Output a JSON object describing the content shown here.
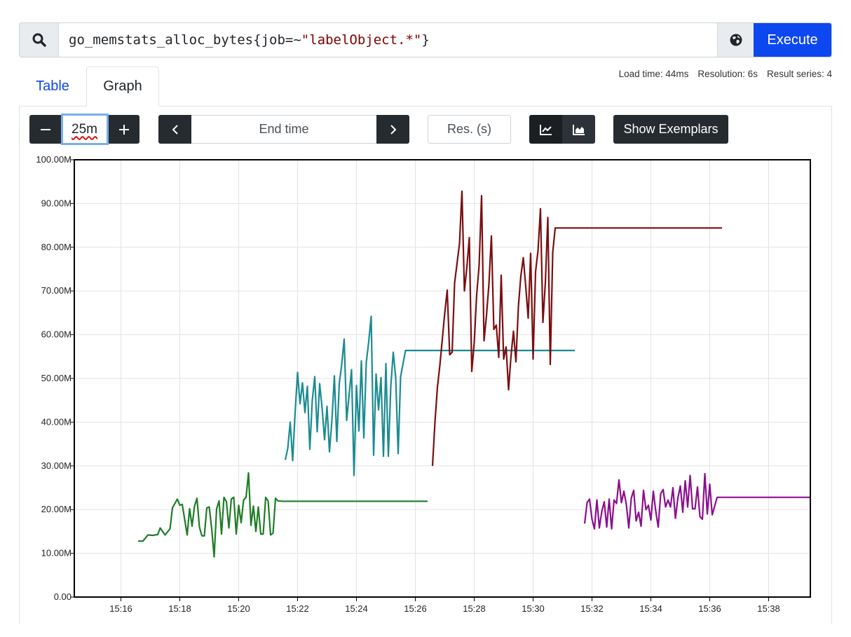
{
  "query": {
    "parts": {
      "metric": "go_memstats_alloc_bytes",
      "open": "{",
      "label": "job",
      "op": "=~",
      "value": "\"labelObject.*\"",
      "close": "}"
    },
    "search_icon": "search-icon",
    "globe_icon": "globe-icon",
    "execute_label": "Execute"
  },
  "tabs": {
    "table": "Table",
    "graph": "Graph",
    "active": "graph"
  },
  "stats": {
    "load_time": "Load time: 44ms",
    "resolution": "Resolution: 6s",
    "result_series": "Result series: 4"
  },
  "controls": {
    "range_value": "25m",
    "end_time_placeholder": "End time",
    "resolution_placeholder": "Res. (s)",
    "show_exemplars_label": "Show Exemplars",
    "stacked_mode": "unstacked",
    "prev_label": "<",
    "next_label": ">"
  },
  "chart_data": {
    "type": "line",
    "xlabel": "",
    "ylabel": "",
    "x_ticks": [
      "15:16",
      "15:18",
      "15:20",
      "15:22",
      "15:24",
      "15:26",
      "15:28",
      "15:30",
      "15:32",
      "15:34",
      "15:36",
      "15:38"
    ],
    "y_ticks": [
      "0.00",
      "10.00M",
      "20.00M",
      "30.00M",
      "40.00M",
      "50.00M",
      "60.00M",
      "70.00M",
      "80.00M",
      "90.00M",
      "100.00M"
    ],
    "xlim": [
      "15:14:25",
      "15:39:25"
    ],
    "ylim": [
      0,
      100000000
    ],
    "grid": true,
    "legend": "none",
    "series": [
      {
        "color": "#1e7d27",
        "points": [
          [
            "15:16:35",
            12.8
          ],
          [
            "15:16:45",
            12.8
          ],
          [
            "15:16:55",
            14.2
          ],
          [
            "15:17:05",
            14.1
          ],
          [
            "15:17:15",
            14.3
          ],
          [
            "15:17:20",
            15.8
          ],
          [
            "15:17:30",
            14.2
          ],
          [
            "15:17:40",
            15.6
          ],
          [
            "15:17:45",
            20.4
          ],
          [
            "15:17:55",
            22.4
          ],
          [
            "15:18:00",
            21.0
          ],
          [
            "15:18:05",
            21.2
          ],
          [
            "15:18:15",
            14.2
          ],
          [
            "15:18:20",
            20.2
          ],
          [
            "15:18:25",
            16.2
          ],
          [
            "15:18:30",
            20.8
          ],
          [
            "15:18:35",
            22.6
          ],
          [
            "15:18:40",
            16.0
          ],
          [
            "15:18:45",
            14.0
          ],
          [
            "15:18:50",
            14.0
          ],
          [
            "15:18:55",
            20.4
          ],
          [
            "15:19:00",
            20.6
          ],
          [
            "15:19:05",
            15.6
          ],
          [
            "15:19:10",
            9.2
          ],
          [
            "15:19:15",
            20.2
          ],
          [
            "15:19:20",
            22.0
          ],
          [
            "15:19:25",
            14.4
          ],
          [
            "15:19:30",
            22.8
          ],
          [
            "15:19:35",
            21.8
          ],
          [
            "15:19:40",
            15.8
          ],
          [
            "15:19:45",
            22.4
          ],
          [
            "15:19:50",
            22.8
          ],
          [
            "15:19:55",
            14.4
          ],
          [
            "15:20:00",
            21.0
          ],
          [
            "15:20:05",
            17.0
          ],
          [
            "15:20:10",
            22.2
          ],
          [
            "15:20:15",
            22.8
          ],
          [
            "15:20:20",
            28.4
          ],
          [
            "15:20:25",
            16.4
          ],
          [
            "15:20:30",
            20.8
          ],
          [
            "15:20:35",
            15.0
          ],
          [
            "15:20:40",
            20.6
          ],
          [
            "15:20:45",
            14.4
          ],
          [
            "15:20:50",
            14.4
          ],
          [
            "15:20:55",
            22.8
          ],
          [
            "15:21:00",
            22.0
          ],
          [
            "15:21:05",
            14.2
          ],
          [
            "15:21:10",
            14.6
          ],
          [
            "15:21:15",
            22.6
          ],
          [
            "15:21:20",
            22.0
          ],
          [
            "15:21:30",
            21.9
          ],
          [
            "15:26:25",
            21.9
          ]
        ]
      },
      {
        "color": "#1b8b91",
        "points": [
          [
            "15:21:35",
            31.4
          ],
          [
            "15:21:40",
            34.0
          ],
          [
            "15:21:45",
            40.0
          ],
          [
            "15:21:50",
            31.2
          ],
          [
            "15:21:55",
            42.2
          ],
          [
            "15:22:00",
            51.4
          ],
          [
            "15:22:05",
            44.2
          ],
          [
            "15:22:10",
            49.0
          ],
          [
            "15:22:15",
            42.2
          ],
          [
            "15:22:20",
            48.2
          ],
          [
            "15:22:25",
            33.8
          ],
          [
            "15:22:30",
            45.0
          ],
          [
            "15:22:35",
            50.4
          ],
          [
            "15:22:40",
            37.8
          ],
          [
            "15:22:45",
            48.8
          ],
          [
            "15:22:50",
            43.2
          ],
          [
            "15:22:55",
            36.0
          ],
          [
            "15:23:00",
            43.6
          ],
          [
            "15:23:05",
            33.2
          ],
          [
            "15:23:10",
            40.4
          ],
          [
            "15:23:15",
            50.6
          ],
          [
            "15:23:20",
            35.6
          ],
          [
            "15:23:25",
            48.8
          ],
          [
            "15:23:30",
            53.2
          ],
          [
            "15:23:35",
            59.0
          ],
          [
            "15:23:40",
            40.4
          ],
          [
            "15:23:45",
            46.2
          ],
          [
            "15:23:50",
            52.0
          ],
          [
            "15:23:55",
            27.8
          ],
          [
            "15:24:00",
            48.4
          ],
          [
            "15:24:05",
            38.0
          ],
          [
            "15:24:10",
            54.0
          ],
          [
            "15:24:15",
            36.4
          ],
          [
            "15:24:20",
            53.6
          ],
          [
            "15:24:25",
            58.4
          ],
          [
            "15:24:30",
            64.2
          ],
          [
            "15:24:35",
            32.4
          ],
          [
            "15:24:40",
            51.0
          ],
          [
            "15:24:45",
            42.8
          ],
          [
            "15:24:50",
            50.2
          ],
          [
            "15:24:55",
            32.2
          ],
          [
            "15:25:00",
            53.4
          ],
          [
            "15:25:05",
            32.2
          ],
          [
            "15:25:10",
            48.2
          ],
          [
            "15:25:15",
            56.0
          ],
          [
            "15:25:20",
            50.2
          ],
          [
            "15:25:25",
            32.8
          ],
          [
            "15:25:30",
            50.4
          ],
          [
            "15:25:40",
            56.4
          ],
          [
            "15:31:25",
            56.4
          ]
        ]
      },
      {
        "color": "#7a0e10",
        "points": [
          [
            "15:26:35",
            30.0
          ],
          [
            "15:26:40",
            40.0
          ],
          [
            "15:26:45",
            48.0
          ],
          [
            "15:26:50",
            53.0
          ],
          [
            "15:26:55",
            59.0
          ],
          [
            "15:27:00",
            65.0
          ],
          [
            "15:27:05",
            70.2
          ],
          [
            "15:27:10",
            55.4
          ],
          [
            "15:27:15",
            56.0
          ],
          [
            "15:27:20",
            71.8
          ],
          [
            "15:27:30",
            80.8
          ],
          [
            "15:27:35",
            92.8
          ],
          [
            "15:27:40",
            70.0
          ],
          [
            "15:27:45",
            75.4
          ],
          [
            "15:27:50",
            82.2
          ],
          [
            "15:27:55",
            51.6
          ],
          [
            "15:28:00",
            58.2
          ],
          [
            "15:28:05",
            69.2
          ],
          [
            "15:28:10",
            75.8
          ],
          [
            "15:28:15",
            91.8
          ],
          [
            "15:28:20",
            58.6
          ],
          [
            "15:28:25",
            64.4
          ],
          [
            "15:28:30",
            71.6
          ],
          [
            "15:28:35",
            82.6
          ],
          [
            "15:28:40",
            61.2
          ],
          [
            "15:28:45",
            62.2
          ],
          [
            "15:28:50",
            54.8
          ],
          [
            "15:28:55",
            73.6
          ],
          [
            "15:29:00",
            54.4
          ],
          [
            "15:29:05",
            57.2
          ],
          [
            "15:29:10",
            47.4
          ],
          [
            "15:29:15",
            55.2
          ],
          [
            "15:29:20",
            60.8
          ],
          [
            "15:29:25",
            53.8
          ],
          [
            "15:29:30",
            66.4
          ],
          [
            "15:29:35",
            73.4
          ],
          [
            "15:29:40",
            77.6
          ],
          [
            "15:29:45",
            71.0
          ],
          [
            "15:29:50",
            63.8
          ],
          [
            "15:29:55",
            78.6
          ],
          [
            "15:30:00",
            54.4
          ],
          [
            "15:30:05",
            74.4
          ],
          [
            "15:30:10",
            79.2
          ],
          [
            "15:30:15",
            88.8
          ],
          [
            "15:30:20",
            62.8
          ],
          [
            "15:30:25",
            72.0
          ],
          [
            "15:30:30",
            86.8
          ],
          [
            "15:30:35",
            53.2
          ],
          [
            "15:30:40",
            78.8
          ],
          [
            "15:30:45",
            84.4
          ],
          [
            "15:36:25",
            84.4
          ]
        ]
      },
      {
        "color": "#8b0f8e",
        "points": [
          [
            "15:31:45",
            16.8
          ],
          [
            "15:31:50",
            21.6
          ],
          [
            "15:31:55",
            22.4
          ],
          [
            "15:32:00",
            17.8
          ],
          [
            "15:32:05",
            15.6
          ],
          [
            "15:32:10",
            22.2
          ],
          [
            "15:32:15",
            15.8
          ],
          [
            "15:32:20",
            19.6
          ],
          [
            "15:32:25",
            21.8
          ],
          [
            "15:32:30",
            16.0
          ],
          [
            "15:32:35",
            22.4
          ],
          [
            "15:32:40",
            15.6
          ],
          [
            "15:32:45",
            22.2
          ],
          [
            "15:32:50",
            21.4
          ],
          [
            "15:32:55",
            26.8
          ],
          [
            "15:33:00",
            21.6
          ],
          [
            "15:33:05",
            24.2
          ],
          [
            "15:33:10",
            21.2
          ],
          [
            "15:33:15",
            15.8
          ],
          [
            "15:33:20",
            22.6
          ],
          [
            "15:33:25",
            24.4
          ],
          [
            "15:33:30",
            17.4
          ],
          [
            "15:33:35",
            19.4
          ],
          [
            "15:33:40",
            16.2
          ],
          [
            "15:33:45",
            24.4
          ],
          [
            "15:33:50",
            20.0
          ],
          [
            "15:33:55",
            21.0
          ],
          [
            "15:34:00",
            17.6
          ],
          [
            "15:34:05",
            24.2
          ],
          [
            "15:34:10",
            19.6
          ],
          [
            "15:34:15",
            16.0
          ],
          [
            "15:34:20",
            23.6
          ],
          [
            "15:34:25",
            24.6
          ],
          [
            "15:34:30",
            20.6
          ],
          [
            "15:34:35",
            22.2
          ],
          [
            "15:34:40",
            20.6
          ],
          [
            "15:34:45",
            25.0
          ],
          [
            "15:34:50",
            18.0
          ],
          [
            "15:34:55",
            22.6
          ],
          [
            "15:35:00",
            25.4
          ],
          [
            "15:35:05",
            19.4
          ],
          [
            "15:35:10",
            26.6
          ],
          [
            "15:35:15",
            20.6
          ],
          [
            "15:35:20",
            27.8
          ],
          [
            "15:35:25",
            20.2
          ],
          [
            "15:35:30",
            20.2
          ],
          [
            "15:35:35",
            25.2
          ],
          [
            "15:35:40",
            18.4
          ],
          [
            "15:35:45",
            17.8
          ],
          [
            "15:35:50",
            28.2
          ],
          [
            "15:35:55",
            19.0
          ],
          [
            "15:36:00",
            25.8
          ],
          [
            "15:36:05",
            18.8
          ],
          [
            "15:36:15",
            22.8
          ],
          [
            "15:39:25",
            22.8
          ]
        ]
      }
    ]
  }
}
